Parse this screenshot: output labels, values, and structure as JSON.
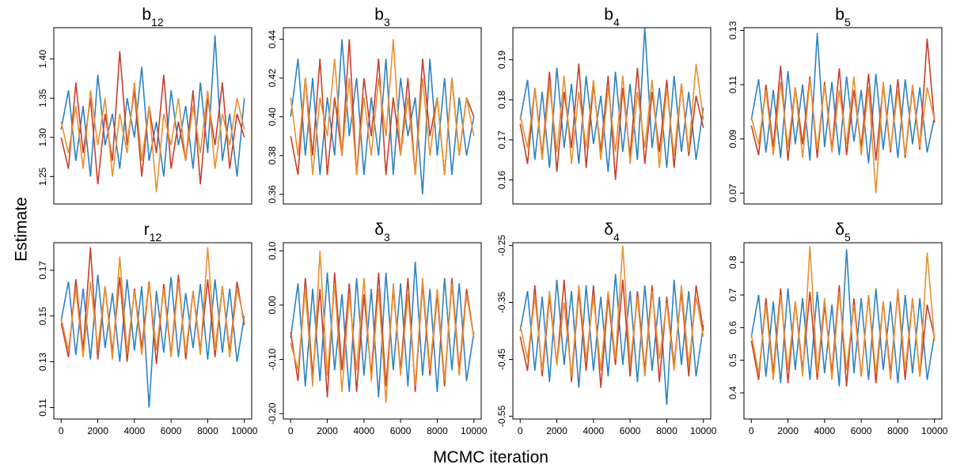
{
  "ylabel": "Estimate",
  "xlabel": "MCMC iteration",
  "chart_data": [
    {
      "type": "line",
      "title": "b",
      "title_subscript": "12",
      "xlim": [
        -400,
        10400
      ],
      "ylim": [
        1.215,
        1.44
      ],
      "yticks": [
        1.25,
        {
          "value": 1.3,
          "label": "1.30"
        },
        1.35,
        {
          "value": 1.4,
          "label": "1.40"
        }
      ],
      "x": [
        0,
        400,
        800,
        1200,
        1600,
        2000,
        2400,
        2800,
        3200,
        3600,
        4000,
        4400,
        4800,
        5200,
        5600,
        6000,
        6400,
        6800,
        7200,
        7600,
        8000,
        8400,
        8800,
        9200,
        9600,
        10000
      ],
      "series": [
        {
          "color": "#2b83c6",
          "values": [
            1.31,
            1.36,
            1.27,
            1.34,
            1.25,
            1.38,
            1.29,
            1.33,
            1.26,
            1.35,
            1.3,
            1.39,
            1.27,
            1.32,
            1.25,
            1.36,
            1.29,
            1.34,
            1.26,
            1.37,
            1.28,
            1.43,
            1.27,
            1.33,
            1.25,
            1.35
          ]
        },
        {
          "color": "#c8402a",
          "values": [
            1.3,
            1.26,
            1.37,
            1.28,
            1.35,
            1.24,
            1.33,
            1.27,
            1.41,
            1.29,
            1.36,
            1.25,
            1.34,
            1.28,
            1.38,
            1.26,
            1.32,
            1.27,
            1.36,
            1.24,
            1.35,
            1.29,
            1.37,
            1.26,
            1.33,
            1.3
          ]
        },
        {
          "color": "#e8912f",
          "values": [
            1.32,
            1.28,
            1.34,
            1.26,
            1.36,
            1.29,
            1.35,
            1.25,
            1.33,
            1.28,
            1.37,
            1.27,
            1.34,
            1.23,
            1.33,
            1.29,
            1.35,
            1.27,
            1.34,
            1.28,
            1.36,
            1.26,
            1.33,
            1.29,
            1.35,
            1.31
          ]
        }
      ]
    },
    {
      "type": "line",
      "title": "b",
      "title_subscript": "3",
      "xlim": [
        -400,
        10400
      ],
      "ylim": [
        0.355,
        0.446
      ],
      "yticks": [
        0.36,
        0.38,
        {
          "value": 0.4,
          "label": "0.40"
        },
        0.42,
        0.44
      ],
      "x": [
        0,
        400,
        800,
        1200,
        1600,
        2000,
        2400,
        2800,
        3200,
        3600,
        4000,
        4400,
        4800,
        5200,
        5600,
        6000,
        6400,
        6800,
        7200,
        7600,
        8000,
        8400,
        8800,
        9200,
        9600,
        10000
      ],
      "series": [
        {
          "color": "#2b83c6",
          "values": [
            0.4,
            0.43,
            0.38,
            0.42,
            0.37,
            0.41,
            0.38,
            0.44,
            0.39,
            0.42,
            0.37,
            0.41,
            0.38,
            0.43,
            0.37,
            0.42,
            0.39,
            0.41,
            0.36,
            0.43,
            0.38,
            0.42,
            0.37,
            0.41,
            0.38,
            0.4
          ]
        },
        {
          "color": "#c8402a",
          "values": [
            0.39,
            0.37,
            0.42,
            0.38,
            0.43,
            0.37,
            0.41,
            0.38,
            0.44,
            0.37,
            0.42,
            0.39,
            0.43,
            0.37,
            0.41,
            0.38,
            0.42,
            0.37,
            0.43,
            0.39,
            0.41,
            0.37,
            0.42,
            0.38,
            0.41,
            0.4
          ]
        },
        {
          "color": "#e8912f",
          "values": [
            0.41,
            0.38,
            0.42,
            0.37,
            0.41,
            0.39,
            0.43,
            0.38,
            0.42,
            0.37,
            0.41,
            0.38,
            0.42,
            0.39,
            0.44,
            0.38,
            0.41,
            0.37,
            0.42,
            0.38,
            0.41,
            0.37,
            0.42,
            0.38,
            0.41,
            0.39
          ]
        }
      ]
    },
    {
      "type": "line",
      "title": "b",
      "title_subscript": "4",
      "xlim": [
        -400,
        10400
      ],
      "ylim": [
        0.154,
        0.198
      ],
      "yticks": [
        0.16,
        0.17,
        0.18,
        0.19
      ],
      "x": [
        0,
        400,
        800,
        1200,
        1600,
        2000,
        2400,
        2800,
        3200,
        3600,
        4000,
        4400,
        4800,
        5200,
        5600,
        6000,
        6400,
        6800,
        7200,
        7600,
        8000,
        8400,
        8800,
        9200,
        9600,
        10000
      ],
      "series": [
        {
          "color": "#2b83c6",
          "values": [
            0.175,
            0.185,
            0.165,
            0.182,
            0.163,
            0.188,
            0.168,
            0.184,
            0.164,
            0.186,
            0.169,
            0.181,
            0.162,
            0.187,
            0.167,
            0.184,
            0.165,
            0.198,
            0.168,
            0.183,
            0.163,
            0.186,
            0.167,
            0.182,
            0.165,
            0.178
          ]
        },
        {
          "color": "#c8402a",
          "values": [
            0.174,
            0.164,
            0.183,
            0.166,
            0.187,
            0.162,
            0.182,
            0.168,
            0.189,
            0.163,
            0.184,
            0.167,
            0.186,
            0.16,
            0.183,
            0.166,
            0.188,
            0.164,
            0.182,
            0.167,
            0.185,
            0.163,
            0.184,
            0.166,
            0.181,
            0.173
          ]
        },
        {
          "color": "#e8912f",
          "values": [
            0.176,
            0.168,
            0.183,
            0.165,
            0.184,
            0.167,
            0.186,
            0.164,
            0.182,
            0.168,
            0.185,
            0.165,
            0.183,
            0.167,
            0.186,
            0.164,
            0.182,
            0.168,
            0.185,
            0.163,
            0.183,
            0.166,
            0.184,
            0.167,
            0.189,
            0.175
          ]
        }
      ]
    },
    {
      "type": "line",
      "title": "b",
      "title_subscript": "5",
      "xlim": [
        -400,
        10400
      ],
      "ylim": [
        0.066,
        0.131
      ],
      "yticks": [
        0.07,
        0.09,
        0.11,
        0.13
      ],
      "x": [
        0,
        400,
        800,
        1200,
        1600,
        2000,
        2400,
        2800,
        3200,
        3600,
        4000,
        4400,
        4800,
        5200,
        5600,
        6000,
        6400,
        6800,
        7200,
        7600,
        8000,
        8400,
        8800,
        9200,
        9600,
        10000
      ],
      "series": [
        {
          "color": "#2b83c6",
          "values": [
            0.097,
            0.112,
            0.085,
            0.108,
            0.083,
            0.115,
            0.088,
            0.11,
            0.082,
            0.129,
            0.087,
            0.111,
            0.084,
            0.113,
            0.089,
            0.108,
            0.081,
            0.114,
            0.086,
            0.11,
            0.083,
            0.112,
            0.088,
            0.109,
            0.085,
            0.098
          ]
        },
        {
          "color": "#c8402a",
          "values": [
            0.095,
            0.084,
            0.11,
            0.087,
            0.117,
            0.082,
            0.109,
            0.088,
            0.113,
            0.083,
            0.111,
            0.086,
            0.116,
            0.084,
            0.108,
            0.087,
            0.114,
            0.082,
            0.11,
            0.085,
            0.112,
            0.083,
            0.109,
            0.086,
            0.127,
            0.096
          ]
        },
        {
          "color": "#e8912f",
          "values": [
            0.098,
            0.088,
            0.108,
            0.084,
            0.111,
            0.087,
            0.109,
            0.083,
            0.112,
            0.086,
            0.11,
            0.085,
            0.108,
            0.088,
            0.113,
            0.084,
            0.109,
            0.07,
            0.111,
            0.086,
            0.108,
            0.084,
            0.11,
            0.087,
            0.109,
            0.097
          ]
        }
      ]
    },
    {
      "type": "line",
      "title": "r",
      "title_subscript": "12",
      "xlim": [
        -400,
        10400
      ],
      "ylim": [
        0.105,
        0.182
      ],
      "xticks": [
        0,
        2000,
        4000,
        6000,
        8000,
        10000
      ],
      "yticks": [
        0.11,
        0.13,
        0.15,
        0.17
      ],
      "x": [
        0,
        400,
        800,
        1200,
        1600,
        2000,
        2400,
        2800,
        3200,
        3600,
        4000,
        4400,
        4800,
        5200,
        5600,
        6000,
        6400,
        6800,
        7200,
        7600,
        8000,
        8400,
        8800,
        9200,
        9600,
        10000
      ],
      "series": [
        {
          "color": "#2b83c6",
          "values": [
            0.148,
            0.165,
            0.133,
            0.162,
            0.131,
            0.168,
            0.136,
            0.16,
            0.13,
            0.166,
            0.135,
            0.163,
            0.11,
            0.161,
            0.134,
            0.167,
            0.132,
            0.16,
            0.136,
            0.164,
            0.131,
            0.166,
            0.134,
            0.162,
            0.13,
            0.15
          ]
        },
        {
          "color": "#c8402a",
          "values": [
            0.147,
            0.132,
            0.166,
            0.135,
            0.18,
            0.131,
            0.163,
            0.134,
            0.167,
            0.13,
            0.162,
            0.136,
            0.165,
            0.129,
            0.164,
            0.133,
            0.168,
            0.131,
            0.161,
            0.135,
            0.166,
            0.132,
            0.163,
            0.134,
            0.165,
            0.146
          ]
        },
        {
          "color": "#e8912f",
          "values": [
            0.149,
            0.135,
            0.162,
            0.132,
            0.165,
            0.136,
            0.163,
            0.131,
            0.176,
            0.134,
            0.161,
            0.133,
            0.164,
            0.135,
            0.162,
            0.132,
            0.165,
            0.134,
            0.161,
            0.133,
            0.18,
            0.135,
            0.163,
            0.132,
            0.162,
            0.148
          ]
        }
      ]
    },
    {
      "type": "line",
      "title": "δ",
      "title_subscript": "3",
      "xlim": [
        -400,
        10400
      ],
      "ylim": [
        -0.21,
        0.115
      ],
      "xticks": [
        0,
        2000,
        4000,
        6000,
        8000,
        10000
      ],
      "yticks": [
        {
          "value": -0.2,
          "label": "-0.20"
        },
        {
          "value": -0.1,
          "label": "-0.10"
        },
        {
          "value": 0,
          "label": "0.00"
        },
        {
          "value": 0.1,
          "label": "0.10"
        }
      ],
      "x": [
        0,
        400,
        800,
        1200,
        1600,
        2000,
        2400,
        2800,
        3200,
        3600,
        4000,
        4400,
        4800,
        5200,
        5600,
        6000,
        6400,
        6800,
        7200,
        7600,
        8000,
        8400,
        8800,
        9200,
        9600,
        10000
      ],
      "series": [
        {
          "color": "#2b83c6",
          "values": [
            -0.06,
            0.04,
            -0.15,
            0.03,
            -0.14,
            0.06,
            -0.12,
            0.02,
            -0.16,
            0.05,
            -0.13,
            0.03,
            -0.17,
            0.06,
            -0.12,
            0.04,
            -0.15,
            0.08,
            -0.13,
            0.03,
            -0.16,
            0.05,
            -0.12,
            0.04,
            -0.14,
            -0.05
          ]
        },
        {
          "color": "#c8402a",
          "values": [
            -0.05,
            -0.14,
            0.05,
            -0.13,
            0.03,
            -0.17,
            0.06,
            -0.12,
            0.04,
            -0.16,
            0.02,
            -0.13,
            0.06,
            -0.15,
            0.03,
            -0.12,
            0.05,
            -0.16,
            0.04,
            -0.13,
            0.02,
            -0.15,
            0.05,
            -0.12,
            0.03,
            -0.06
          ]
        },
        {
          "color": "#e8912f",
          "values": [
            -0.07,
            -0.12,
            0.03,
            -0.15,
            0.1,
            -0.13,
            0.04,
            -0.16,
            0.02,
            -0.12,
            0.05,
            -0.14,
            0.03,
            -0.18,
            0.04,
            -0.13,
            0.02,
            -0.15,
            0.05,
            -0.12,
            0.03,
            -0.14,
            0.04,
            -0.13,
            0.02,
            -0.06
          ]
        }
      ]
    },
    {
      "type": "line",
      "title": "δ",
      "title_subscript": "4",
      "xlim": [
        -400,
        10400
      ],
      "ylim": [
        -0.555,
        -0.245
      ],
      "xticks": [
        0,
        2000,
        4000,
        6000,
        8000,
        10000
      ],
      "yticks": [
        -0.55,
        -0.45,
        -0.35,
        -0.25
      ],
      "x": [
        0,
        400,
        800,
        1200,
        1600,
        2000,
        2400,
        2800,
        3200,
        3600,
        4000,
        4400,
        4800,
        5200,
        5600,
        6000,
        6400,
        6800,
        7200,
        7600,
        8000,
        8400,
        8800,
        9200,
        9600,
        10000
      ],
      "series": [
        {
          "color": "#2b83c6",
          "values": [
            -0.4,
            -0.33,
            -0.47,
            -0.34,
            -0.49,
            -0.31,
            -0.46,
            -0.33,
            -0.5,
            -0.32,
            -0.47,
            -0.34,
            -0.48,
            -0.3,
            -0.46,
            -0.33,
            -0.49,
            -0.32,
            -0.47,
            -0.34,
            -0.53,
            -0.31,
            -0.46,
            -0.33,
            -0.48,
            -0.39
          ]
        },
        {
          "color": "#c8402a",
          "values": [
            -0.41,
            -0.47,
            -0.32,
            -0.48,
            -0.34,
            -0.46,
            -0.31,
            -0.49,
            -0.33,
            -0.47,
            -0.32,
            -0.5,
            -0.34,
            -0.46,
            -0.31,
            -0.48,
            -0.33,
            -0.47,
            -0.32,
            -0.49,
            -0.34,
            -0.46,
            -0.33,
            -0.48,
            -0.32,
            -0.4
          ]
        },
        {
          "color": "#e8912f",
          "values": [
            -0.39,
            -0.45,
            -0.34,
            -0.47,
            -0.33,
            -0.46,
            -0.35,
            -0.48,
            -0.32,
            -0.45,
            -0.34,
            -0.47,
            -0.33,
            -0.45,
            -0.25,
            -0.46,
            -0.34,
            -0.48,
            -0.33,
            -0.45,
            -0.35,
            -0.47,
            -0.32,
            -0.46,
            -0.34,
            -0.41
          ]
        }
      ]
    },
    {
      "type": "line",
      "title": "δ",
      "title_subscript": "5",
      "xlim": [
        -400,
        10400
      ],
      "ylim": [
        0.32,
        0.86
      ],
      "xticks": [
        0,
        2000,
        4000,
        6000,
        8000,
        10000
      ],
      "yticks": [
        0.4,
        0.5,
        0.6,
        0.7,
        0.8
      ],
      "x": [
        0,
        400,
        800,
        1200,
        1600,
        2000,
        2400,
        2800,
        3200,
        3600,
        4000,
        4400,
        4800,
        5200,
        5600,
        6000,
        6400,
        6800,
        7200,
        7600,
        8000,
        8400,
        8800,
        9200,
        9600,
        10000
      ],
      "series": [
        {
          "color": "#2b83c6",
          "values": [
            0.57,
            0.7,
            0.45,
            0.68,
            0.43,
            0.72,
            0.47,
            0.69,
            0.44,
            0.71,
            0.46,
            0.67,
            0.42,
            0.84,
            0.46,
            0.69,
            0.44,
            0.72,
            0.47,
            0.68,
            0.43,
            0.7,
            0.46,
            0.69,
            0.44,
            0.58
          ]
        },
        {
          "color": "#c8402a",
          "values": [
            0.56,
            0.44,
            0.69,
            0.46,
            0.72,
            0.43,
            0.68,
            0.47,
            0.71,
            0.44,
            0.67,
            0.46,
            0.73,
            0.42,
            0.69,
            0.45,
            0.7,
            0.43,
            0.68,
            0.46,
            0.71,
            0.44,
            0.69,
            0.45,
            0.67,
            0.57
          ]
        },
        {
          "color": "#e8912f",
          "values": [
            0.58,
            0.46,
            0.67,
            0.44,
            0.7,
            0.47,
            0.68,
            0.45,
            0.85,
            0.46,
            0.69,
            0.44,
            0.71,
            0.47,
            0.67,
            0.45,
            0.7,
            0.46,
            0.68,
            0.44,
            0.72,
            0.47,
            0.69,
            0.45,
            0.83,
            0.56
          ]
        }
      ]
    }
  ]
}
